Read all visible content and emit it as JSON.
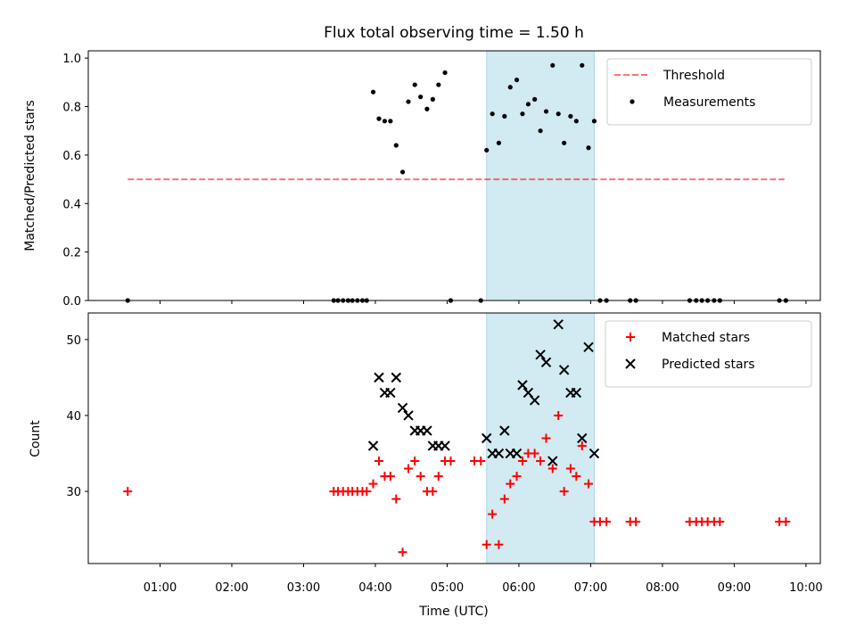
{
  "chart_data": {
    "title": "Flux total observing time = 1.50 h",
    "xlabel": "Time (UTC)",
    "x_ticks": [
      "01:00",
      "02:00",
      "03:00",
      "04:00",
      "05:00",
      "06:00",
      "07:00",
      "08:00",
      "09:00",
      "10:00"
    ],
    "xlim_hours": [
      0.0,
      10.2
    ],
    "shaded_span_hours": [
      5.55,
      7.05
    ],
    "shade_color": "#add8e6",
    "panels": [
      {
        "type": "scatter",
        "ylabel": "Matched/Predicted stars",
        "ylim": [
          0,
          1.03
        ],
        "y_ticks": [
          "0.0",
          "0.2",
          "0.4",
          "0.6",
          "0.8",
          "1.0"
        ],
        "threshold": {
          "name": "Threshold",
          "y": 0.5,
          "x_range_hours": [
            0.55,
            9.7
          ],
          "color": "#ff0000"
        },
        "series": [
          {
            "name": "Measurements",
            "color": "#000000",
            "points": [
              [
                0.55,
                0.0
              ],
              [
                3.42,
                0.0
              ],
              [
                3.48,
                0.0
              ],
              [
                3.55,
                0.0
              ],
              [
                3.62,
                0.0
              ],
              [
                3.68,
                0.0
              ],
              [
                3.75,
                0.0
              ],
              [
                3.82,
                0.0
              ],
              [
                3.88,
                0.0
              ],
              [
                3.97,
                0.86
              ],
              [
                4.05,
                0.75
              ],
              [
                4.13,
                0.74
              ],
              [
                4.21,
                0.74
              ],
              [
                4.29,
                0.64
              ],
              [
                4.38,
                0.53
              ],
              [
                4.46,
                0.82
              ],
              [
                4.55,
                0.89
              ],
              [
                4.63,
                0.84
              ],
              [
                4.72,
                0.79
              ],
              [
                4.8,
                0.83
              ],
              [
                4.88,
                0.89
              ],
              [
                4.97,
                0.94
              ],
              [
                5.05,
                0.0
              ],
              [
                5.47,
                0.0
              ],
              [
                5.55,
                0.62
              ],
              [
                5.63,
                0.77
              ],
              [
                5.72,
                0.65
              ],
              [
                5.8,
                0.76
              ],
              [
                5.88,
                0.88
              ],
              [
                5.97,
                0.91
              ],
              [
                6.05,
                0.77
              ],
              [
                6.13,
                0.81
              ],
              [
                6.22,
                0.83
              ],
              [
                6.3,
                0.7
              ],
              [
                6.38,
                0.78
              ],
              [
                6.47,
                0.97
              ],
              [
                6.55,
                0.77
              ],
              [
                6.63,
                0.65
              ],
              [
                6.72,
                0.76
              ],
              [
                6.8,
                0.74
              ],
              [
                6.88,
                0.97
              ],
              [
                6.97,
                0.63
              ],
              [
                7.05,
                0.74
              ],
              [
                7.13,
                0.0
              ],
              [
                7.22,
                0.0
              ],
              [
                7.55,
                0.0
              ],
              [
                7.63,
                0.0
              ],
              [
                8.38,
                0.0
              ],
              [
                8.47,
                0.0
              ],
              [
                8.55,
                0.0
              ],
              [
                8.63,
                0.0
              ],
              [
                8.72,
                0.0
              ],
              [
                8.8,
                0.0
              ],
              [
                9.63,
                0.0
              ],
              [
                9.72,
                0.0
              ]
            ]
          }
        ]
      },
      {
        "type": "scatter",
        "ylabel": "Count",
        "ylim": [
          20.5,
          53.5
        ],
        "y_ticks": [
          "30",
          "40",
          "50"
        ],
        "series": [
          {
            "name": "Matched stars",
            "marker": "plus",
            "color": "#ff0000",
            "points": [
              [
                0.55,
                30
              ],
              [
                3.42,
                30
              ],
              [
                3.48,
                30
              ],
              [
                3.55,
                30
              ],
              [
                3.62,
                30
              ],
              [
                3.68,
                30
              ],
              [
                3.75,
                30
              ],
              [
                3.82,
                30
              ],
              [
                3.88,
                30
              ],
              [
                3.97,
                31
              ],
              [
                4.05,
                34
              ],
              [
                4.13,
                32
              ],
              [
                4.21,
                32
              ],
              [
                4.29,
                29
              ],
              [
                4.38,
                22
              ],
              [
                4.46,
                33
              ],
              [
                4.55,
                34
              ],
              [
                4.63,
                32
              ],
              [
                4.72,
                30
              ],
              [
                4.8,
                30
              ],
              [
                4.88,
                32
              ],
              [
                4.97,
                34
              ],
              [
                5.05,
                34
              ],
              [
                5.38,
                34
              ],
              [
                5.47,
                34
              ],
              [
                5.55,
                23
              ],
              [
                5.63,
                27
              ],
              [
                5.72,
                23
              ],
              [
                5.8,
                29
              ],
              [
                5.88,
                31
              ],
              [
                5.97,
                32
              ],
              [
                6.05,
                34
              ],
              [
                6.13,
                35
              ],
              [
                6.22,
                35
              ],
              [
                6.3,
                34
              ],
              [
                6.38,
                37
              ],
              [
                6.47,
                33
              ],
              [
                6.55,
                40
              ],
              [
                6.63,
                30
              ],
              [
                6.72,
                33
              ],
              [
                6.8,
                32
              ],
              [
                6.88,
                36
              ],
              [
                6.97,
                31
              ],
              [
                7.05,
                26
              ],
              [
                7.13,
                26
              ],
              [
                7.22,
                26
              ],
              [
                7.55,
                26
              ],
              [
                7.63,
                26
              ],
              [
                8.38,
                26
              ],
              [
                8.47,
                26
              ],
              [
                8.55,
                26
              ],
              [
                8.63,
                26
              ],
              [
                8.72,
                26
              ],
              [
                8.8,
                26
              ],
              [
                9.63,
                26
              ],
              [
                9.72,
                26
              ]
            ]
          },
          {
            "name": "Predicted stars",
            "marker": "x",
            "color": "#000000",
            "points": [
              [
                3.97,
                36
              ],
              [
                4.05,
                45
              ],
              [
                4.13,
                43
              ],
              [
                4.21,
                43
              ],
              [
                4.29,
                45
              ],
              [
                4.38,
                41
              ],
              [
                4.46,
                40
              ],
              [
                4.55,
                38
              ],
              [
                4.63,
                38
              ],
              [
                4.72,
                38
              ],
              [
                4.8,
                36
              ],
              [
                4.88,
                36
              ],
              [
                4.97,
                36
              ],
              [
                5.55,
                37
              ],
              [
                5.63,
                35
              ],
              [
                5.72,
                35
              ],
              [
                5.8,
                38
              ],
              [
                5.88,
                35
              ],
              [
                5.97,
                35
              ],
              [
                6.05,
                44
              ],
              [
                6.13,
                43
              ],
              [
                6.22,
                42
              ],
              [
                6.3,
                48
              ],
              [
                6.38,
                47
              ],
              [
                6.47,
                34
              ],
              [
                6.55,
                52
              ],
              [
                6.63,
                46
              ],
              [
                6.72,
                43
              ],
              [
                6.8,
                43
              ],
              [
                6.88,
                37
              ],
              [
                6.97,
                49
              ],
              [
                7.05,
                35
              ]
            ]
          }
        ]
      }
    ]
  }
}
